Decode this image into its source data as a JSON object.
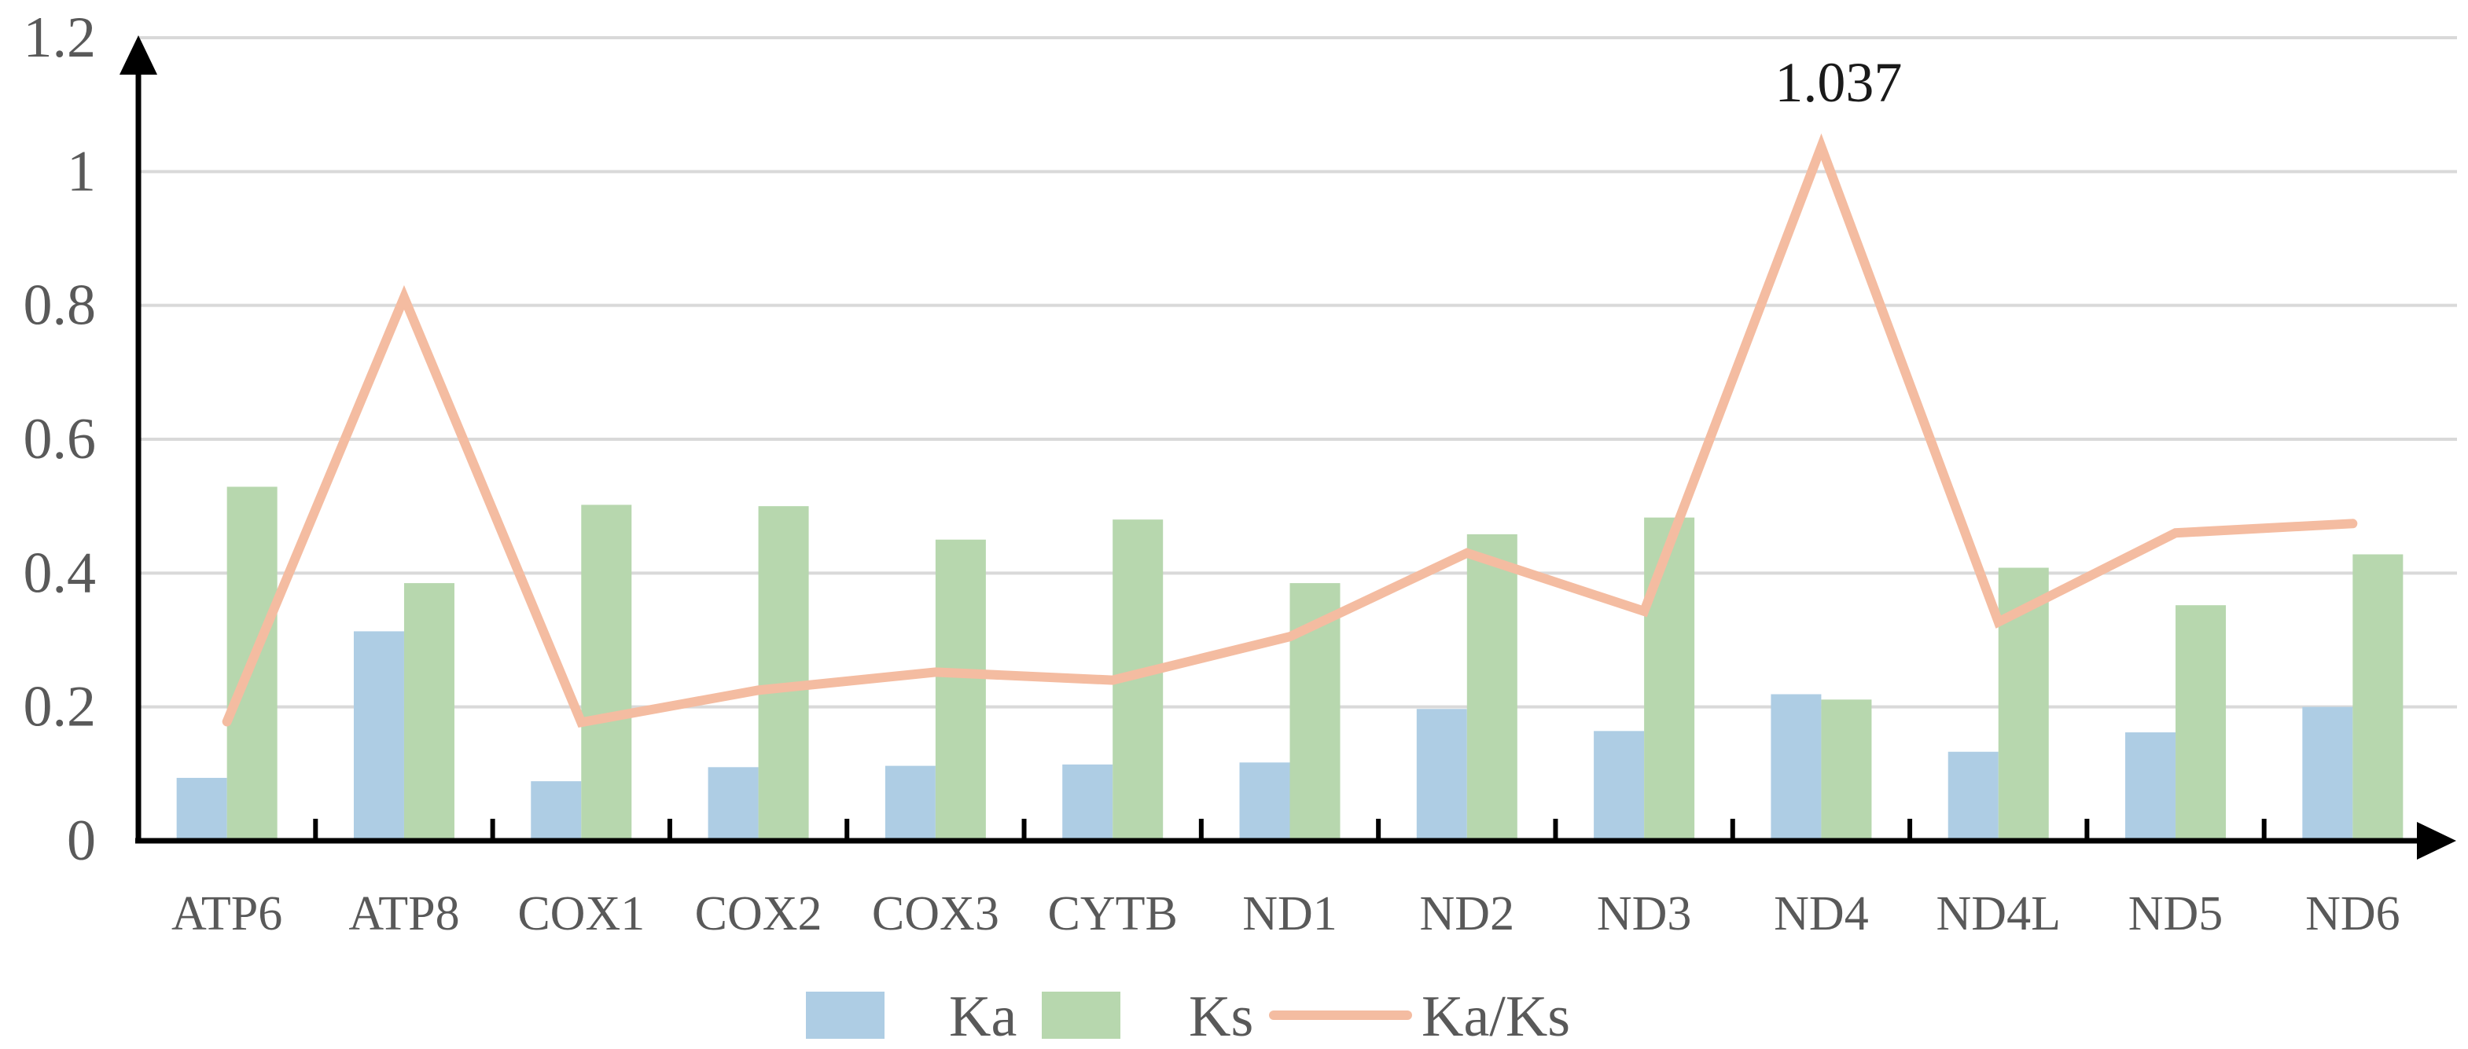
{
  "chart_data": {
    "type": "bar",
    "title": "",
    "xlabel": "",
    "ylabel": "",
    "ylim": [
      0,
      1.2
    ],
    "yticks": [
      "0",
      "0.2",
      "0.4",
      "0.6",
      "0.8",
      "1",
      "1.2"
    ],
    "grid": true,
    "legend_position": "bottom-center",
    "categories": [
      "ATP6",
      "ATP8",
      "COX1",
      "COX2",
      "COX3",
      "CYTB",
      "ND1",
      "ND2",
      "ND3",
      "ND4",
      "ND4L",
      "ND5",
      "ND6"
    ],
    "series": [
      {
        "name": "Ka",
        "kind": "bar",
        "color": "#aecde4",
        "values": [
          0.094,
          0.313,
          0.089,
          0.11,
          0.112,
          0.114,
          0.117,
          0.197,
          0.164,
          0.219,
          0.133,
          0.162,
          0.2
        ]
      },
      {
        "name": "Ks",
        "kind": "bar",
        "color": "#b7d7ae",
        "values": [
          0.529,
          0.385,
          0.502,
          0.5,
          0.45,
          0.48,
          0.385,
          0.458,
          0.483,
          0.211,
          0.408,
          0.352,
          0.428
        ]
      },
      {
        "name": "Ka/Ks",
        "kind": "line",
        "color": "#f4bca1",
        "values": [
          0.178,
          0.812,
          0.177,
          0.225,
          0.252,
          0.24,
          0.305,
          0.43,
          0.343,
          1.037,
          0.327,
          0.46,
          0.474
        ]
      }
    ],
    "annotations": [
      {
        "text": "1.037",
        "series": "Ka/Ks",
        "category": "ND4"
      }
    ],
    "axis_color": "#000000",
    "grid_color": "#d9d9d9"
  }
}
